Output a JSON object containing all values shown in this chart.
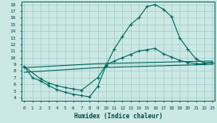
{
  "background_color": "#cce8e4",
  "grid_color": "#a0ccc8",
  "line_color": "#006860",
  "xlim": [
    -0.3,
    23.3
  ],
  "ylim": [
    3.5,
    18.5
  ],
  "xticks": [
    0,
    1,
    2,
    3,
    4,
    5,
    6,
    7,
    8,
    9,
    10,
    11,
    12,
    13,
    14,
    15,
    16,
    17,
    18,
    19,
    20,
    21,
    22,
    23
  ],
  "yticks": [
    4,
    5,
    6,
    7,
    8,
    9,
    10,
    11,
    12,
    13,
    14,
    15,
    16,
    17,
    18
  ],
  "curve1_x": [
    0,
    1,
    2,
    3,
    4,
    5,
    6,
    7,
    8,
    9,
    10,
    11,
    12,
    13,
    14,
    15,
    16,
    17,
    18,
    19,
    20,
    21,
    22,
    23
  ],
  "curve1_y": [
    8.7,
    7.0,
    6.5,
    5.8,
    5.2,
    4.8,
    4.5,
    4.3,
    4.1,
    5.7,
    8.8,
    11.3,
    13.2,
    15.0,
    16.0,
    17.7,
    18.0,
    17.3,
    16.2,
    13.0,
    11.3,
    9.8,
    9.2,
    9.3
  ],
  "curve2_x": [
    0,
    2,
    3,
    4,
    5,
    6,
    7,
    9,
    10,
    11,
    12,
    13,
    14,
    15,
    16,
    17,
    18,
    19,
    20,
    21,
    22,
    23
  ],
  "curve2_y": [
    8.7,
    6.8,
    6.2,
    5.8,
    5.5,
    5.3,
    5.1,
    7.0,
    8.9,
    9.5,
    10.0,
    10.5,
    11.0,
    11.2,
    11.4,
    10.6,
    10.1,
    9.6,
    9.3,
    9.1,
    9.1,
    9.3
  ],
  "curve3_x": [
    0,
    9,
    23
  ],
  "curve3_y": [
    8.5,
    9.1,
    9.5
  ],
  "curve4_x": [
    0,
    9,
    23
  ],
  "curve4_y": [
    7.8,
    8.5,
    9.0
  ],
  "xlabel": "Humidex (Indice chaleur)"
}
